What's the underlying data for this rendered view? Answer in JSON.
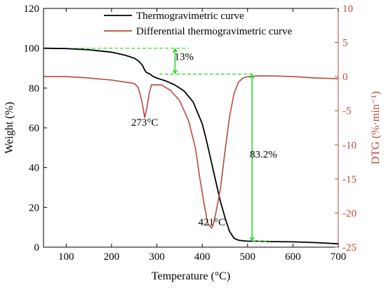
{
  "chart_data": {
    "type": "line",
    "xlabel": "Temperature (°C)",
    "ylabel": "Weight (%)",
    "y2label": "DTG (%·min⁻¹)",
    "xlim": [
      50,
      700
    ],
    "ylim": [
      0,
      120
    ],
    "y2lim": [
      -25,
      10
    ],
    "xticks": [
      100,
      200,
      300,
      400,
      500,
      600,
      700
    ],
    "yticks": [
      0,
      20,
      40,
      60,
      80,
      100,
      120
    ],
    "y2ticks": [
      -25,
      -20,
      -15,
      -10,
      -5,
      0,
      5,
      10
    ],
    "series": [
      {
        "name": "Thermogravimetric curve",
        "axis": "left",
        "color": "#000000",
        "x": [
          50,
          100,
          150,
          200,
          230,
          250,
          260,
          268,
          272,
          276,
          280,
          285,
          290,
          300,
          320,
          340,
          360,
          380,
          400,
          410,
          420,
          430,
          440,
          450,
          460,
          470,
          480,
          490,
          500,
          520,
          560,
          600,
          650,
          700
        ],
        "y": [
          100,
          99.8,
          99.2,
          98,
          96.5,
          95,
          93.5,
          91.5,
          89.5,
          88,
          87.5,
          87,
          86,
          85,
          83.5,
          81.5,
          78.5,
          73,
          62,
          53,
          43,
          33,
          23,
          15,
          8,
          4.5,
          3.5,
          3.2,
          3,
          3,
          2.8,
          2.7,
          2.3,
          1.7
        ]
      },
      {
        "name": "Differential thermogravimetric  curve",
        "axis": "right",
        "color": "#b84a3c",
        "x": [
          50,
          100,
          150,
          200,
          230,
          250,
          258,
          263,
          268,
          273,
          278,
          283,
          288,
          295,
          310,
          330,
          350,
          370,
          385,
          395,
          405,
          412,
          418,
          421,
          425,
          430,
          440,
          450,
          460,
          470,
          480,
          490,
          500,
          520,
          560,
          600,
          650,
          700
        ],
        "y": [
          0,
          0,
          -0.2,
          -0.5,
          -0.8,
          -1.0,
          -1.5,
          -2.5,
          -4.0,
          -6.0,
          -4.5,
          -2.5,
          -1.2,
          -1.2,
          -1.2,
          -2.0,
          -3.5,
          -6.5,
          -10.5,
          -15.0,
          -19.0,
          -21.5,
          -22.0,
          -22.2,
          -21.5,
          -20.0,
          -16.5,
          -11.0,
          -6.0,
          -2.5,
          -0.8,
          -0.2,
          0.0,
          0.1,
          0.1,
          0.0,
          -0.2,
          -0.3
        ]
      }
    ],
    "annotations": [
      {
        "text": "273°C",
        "x": 273,
        "y": 61
      },
      {
        "text": "421°C",
        "x": 421,
        "y": 11
      },
      {
        "text": "13%",
        "x": 360,
        "y": 94
      },
      {
        "text": "83.2%",
        "x": 535,
        "y": 45
      }
    ]
  }
}
